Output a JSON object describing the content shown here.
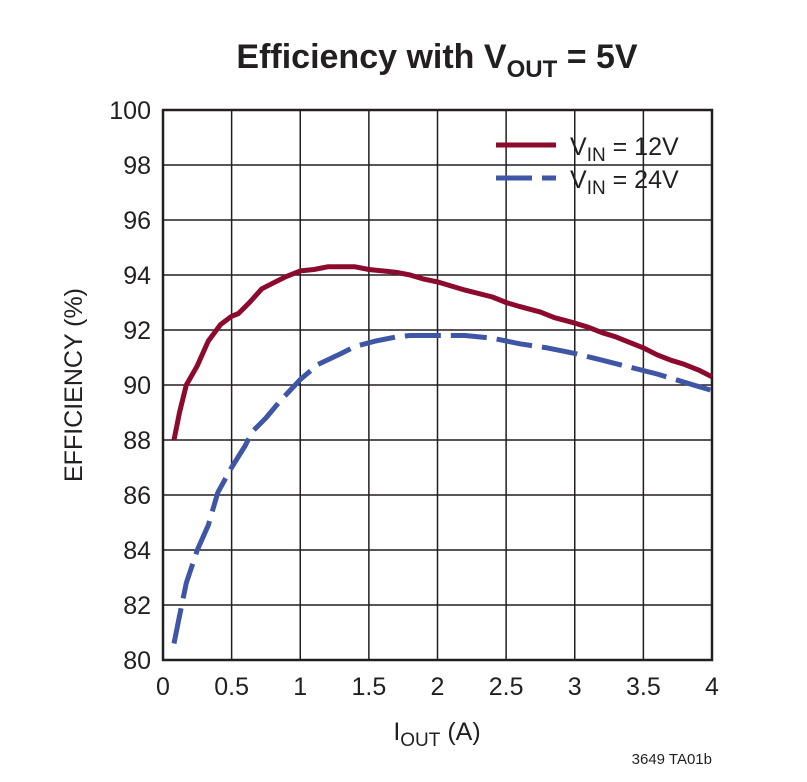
{
  "chart_data": {
    "type": "line",
    "title": {
      "main": "Efficiency with V",
      "sub": "OUT",
      "tail": " = 5V"
    },
    "xlabel": {
      "main": "I",
      "sub": "OUT",
      "tail": " (A)"
    },
    "ylabel": "EFFICIENCY (%)",
    "xlim": [
      0,
      4
    ],
    "ylim": [
      80,
      100
    ],
    "x_ticks": [
      0,
      0.5,
      1,
      1.5,
      2,
      2.5,
      3,
      3.5,
      4
    ],
    "x_tick_labels": [
      "0",
      "0.5",
      "1",
      "1.5",
      "2",
      "2.5",
      "3",
      "3.5",
      "4"
    ],
    "y_ticks": [
      80,
      82,
      84,
      86,
      88,
      90,
      92,
      94,
      96,
      98,
      100
    ],
    "y_tick_labels": [
      "80",
      "82",
      "84",
      "86",
      "88",
      "90",
      "92",
      "94",
      "96",
      "98",
      "100"
    ],
    "grid": true,
    "legend_position": "top-right",
    "series": [
      {
        "name": "VIN = 12V",
        "legend": {
          "main": "V",
          "sub": "IN",
          "tail": " = 12V"
        },
        "style": "solid",
        "color": "#8b0a2e",
        "x": [
          0.08,
          0.12,
          0.17,
          0.25,
          0.33,
          0.42,
          0.5,
          0.55,
          0.63,
          0.72,
          0.8,
          0.9,
          1.0,
          1.1,
          1.2,
          1.3,
          1.4,
          1.5,
          1.6,
          1.7,
          1.8,
          1.9,
          2.0,
          2.2,
          2.4,
          2.5,
          2.6,
          2.75,
          2.85,
          3.0,
          3.1,
          3.2,
          3.3,
          3.4,
          3.5,
          3.6,
          3.7,
          3.8,
          3.9,
          4.0
        ],
        "values": [
          88.0,
          89.0,
          90.0,
          90.7,
          91.6,
          92.2,
          92.5,
          92.6,
          93.0,
          93.5,
          93.7,
          93.95,
          94.15,
          94.2,
          94.3,
          94.3,
          94.3,
          94.2,
          94.15,
          94.1,
          94.0,
          93.85,
          93.75,
          93.45,
          93.2,
          93.0,
          92.85,
          92.65,
          92.45,
          92.25,
          92.1,
          91.9,
          91.75,
          91.55,
          91.35,
          91.1,
          90.9,
          90.75,
          90.55,
          90.3
        ]
      },
      {
        "name": "VIN = 24V",
        "legend": {
          "main": "V",
          "sub": "IN",
          "tail": " = 24V"
        },
        "style": "dashed",
        "color": "#3f56a6",
        "x": [
          0.08,
          0.12,
          0.17,
          0.25,
          0.33,
          0.4,
          0.5,
          0.6,
          0.65,
          0.75,
          0.85,
          1.0,
          1.13,
          1.3,
          1.4,
          1.55,
          1.7,
          1.8,
          1.9,
          2.0,
          2.2,
          2.4,
          2.6,
          2.8,
          3.0,
          3.2,
          3.4,
          3.6,
          3.8,
          4.0
        ],
        "values": [
          80.6,
          81.6,
          82.8,
          84.0,
          84.9,
          86.1,
          87.0,
          87.8,
          88.3,
          88.8,
          89.4,
          90.2,
          90.75,
          91.15,
          91.4,
          91.6,
          91.75,
          91.8,
          91.8,
          91.8,
          91.8,
          91.7,
          91.5,
          91.35,
          91.15,
          90.9,
          90.65,
          90.4,
          90.1,
          89.8
        ]
      }
    ],
    "annotation": "3649 TA01b"
  }
}
